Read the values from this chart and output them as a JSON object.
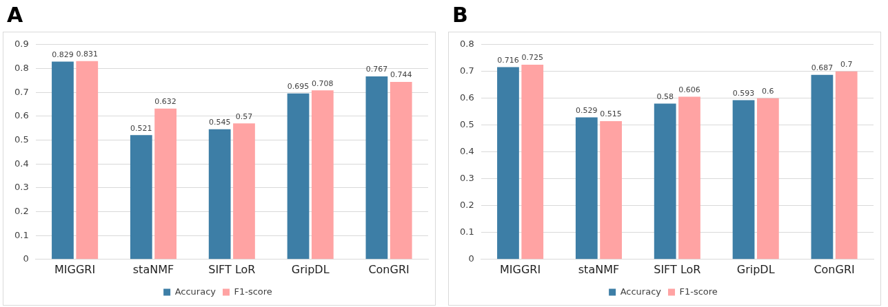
{
  "chart_data": [
    {
      "type": "bar",
      "title": "A",
      "categories": [
        "MIGGRI",
        "staNMF",
        "SIFT LoR",
        "GripDL",
        "ConGRI"
      ],
      "series": [
        {
          "name": "Accuracy",
          "color": "#3d7ea6",
          "values": [
            0.829,
            0.521,
            0.545,
            0.695,
            0.767
          ]
        },
        {
          "name": "F1-score",
          "color": "#ffa3a3",
          "values": [
            0.831,
            0.632,
            0.57,
            0.708,
            0.744
          ]
        }
      ],
      "ylim": [
        0,
        0.9
      ],
      "yticks": [
        0,
        0.1,
        0.2,
        0.3,
        0.4,
        0.5,
        0.6,
        0.7,
        0.8,
        0.9
      ],
      "grid": "y",
      "legend": "bottom",
      "data_labels": true
    },
    {
      "type": "bar",
      "title": "B",
      "categories": [
        "MIGGRI",
        "staNMF",
        "SIFT LoR",
        "GripDL",
        "ConGRI"
      ],
      "series": [
        {
          "name": "Accuracy",
          "color": "#3d7ea6",
          "values": [
            0.716,
            0.529,
            0.58,
            0.593,
            0.687
          ]
        },
        {
          "name": "F1-score",
          "color": "#ffa3a3",
          "values": [
            0.725,
            0.515,
            0.606,
            0.6,
            0.7
          ]
        }
      ],
      "ylim": [
        0,
        0.8
      ],
      "yticks": [
        0,
        0.1,
        0.2,
        0.3,
        0.4,
        0.5,
        0.6,
        0.7,
        0.8
      ],
      "grid": "y",
      "legend": "bottom",
      "data_labels": true
    }
  ]
}
